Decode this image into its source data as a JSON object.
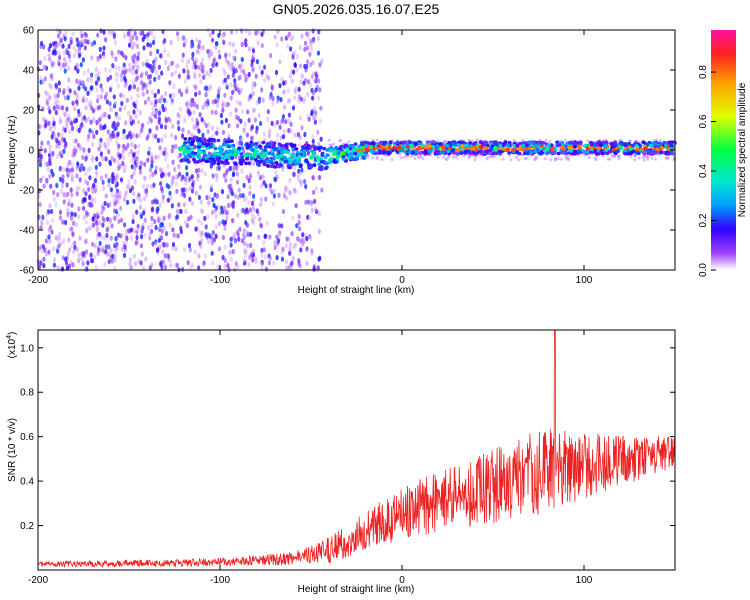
{
  "title": "GN05.2026.035.16.07.E25",
  "chart_data": [
    {
      "type": "heatmap",
      "xlabel": "Height of straight line (km)",
      "ylabel": "Frequency (Hz)",
      "xlim": [
        -200,
        150
      ],
      "ylim": [
        -60,
        60
      ],
      "x_ticks": [
        -200,
        -100,
        0,
        100
      ],
      "y_ticks": [
        -60,
        -40,
        -20,
        0,
        20,
        40,
        60
      ],
      "colorbar": {
        "label": "Normalized spectral amplitude",
        "range": [
          0,
          0.97
        ],
        "ticks": [
          0,
          0.2,
          0.4,
          0.6,
          0.8
        ],
        "tick_labels": [
          "0.0",
          "0.2",
          "0.4",
          "0.6",
          "0.8"
        ],
        "colormap": "rainbow"
      },
      "features": {
        "noise_region_x": [
          -200,
          -44
        ],
        "low_freq_band_center_hz": 0,
        "strong_band_x": [
          -30,
          150
        ]
      }
    },
    {
      "type": "line",
      "xlabel": "Height of straight line (km)",
      "ylabel": "SNR (10 * v/v)",
      "y_multiplier": "(x10^4)",
      "multiplier_base": "(x10",
      "multiplier_exp": "4",
      "multiplier_close": ")",
      "xlim": [
        -200,
        150
      ],
      "ylim": [
        0,
        1.08
      ],
      "x_ticks": [
        -200,
        -100,
        0,
        100
      ],
      "y_ticks": [
        0.2,
        0.4,
        0.6,
        0.8,
        1.0
      ],
      "y_tick_labels": [
        "0.2",
        "0.4",
        "0.6",
        "0.8",
        "1.0"
      ],
      "color": "#ee2222",
      "envelope": [
        {
          "x": -200,
          "mean": 0.025,
          "amp": 0.012
        },
        {
          "x": -100,
          "mean": 0.035,
          "amp": 0.018
        },
        {
          "x": -60,
          "mean": 0.05,
          "amp": 0.03
        },
        {
          "x": -40,
          "mean": 0.09,
          "amp": 0.06
        },
        {
          "x": -20,
          "mean": 0.17,
          "amp": 0.09
        },
        {
          "x": 0,
          "mean": 0.26,
          "amp": 0.12
        },
        {
          "x": 40,
          "mean": 0.35,
          "amp": 0.16
        },
        {
          "x": 80,
          "mean": 0.45,
          "amp": 0.2
        },
        {
          "x": 110,
          "mean": 0.48,
          "amp": 0.13
        },
        {
          "x": 150,
          "mean": 0.53,
          "amp": 0.07
        }
      ],
      "peak": {
        "x": 84,
        "y": 1.08
      }
    }
  ]
}
